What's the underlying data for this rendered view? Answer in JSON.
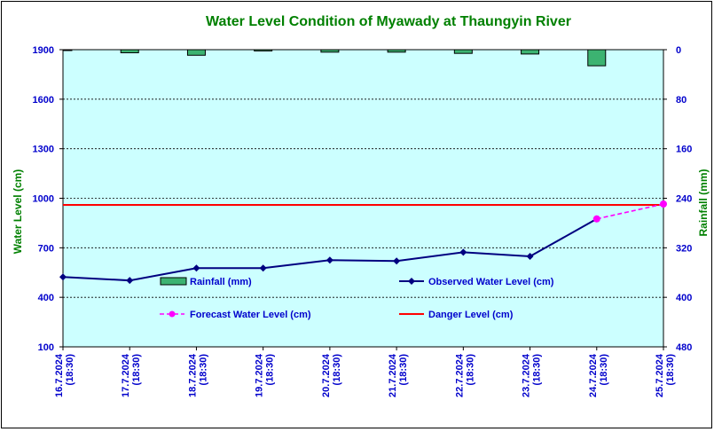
{
  "chart_data": {
    "type": "line",
    "title": "Water Level Condition of  Myawady at Thaungyin River",
    "ylabel": "Water Level (cm)",
    "y2label": "Rainfall (mm)",
    "ylim": [
      100,
      1900
    ],
    "yticks": [
      100,
      400,
      700,
      1000,
      1300,
      1600,
      1900
    ],
    "y2lim": [
      0,
      480
    ],
    "y2ticks": [
      0,
      80,
      160,
      240,
      320,
      400,
      480
    ],
    "y2_inverted": true,
    "grid": true,
    "categories": [
      {
        "date": "16.7.2024",
        "time": "(18:30)"
      },
      {
        "date": "17.7.2024",
        "time": "(18:30)"
      },
      {
        "date": "18.7.2024",
        "time": "(18:30)"
      },
      {
        "date": "19.7.2024",
        "time": "(18:30)"
      },
      {
        "date": "20.7.2024",
        "time": "(18:30)"
      },
      {
        "date": "21.7.2024",
        "time": "(18:30)"
      },
      {
        "date": "22.7.2024",
        "time": "(18:30)"
      },
      {
        "date": "23.7.2024",
        "time": "(18:30)"
      },
      {
        "date": "24.7.2024",
        "time": "(18:30)"
      },
      {
        "date": "25.7.2024",
        "time": "(18:30)"
      }
    ],
    "series": [
      {
        "name": "Rainfall (mm)",
        "type": "bar",
        "axis": "y2",
        "color": "#3cb371",
        "values": [
          0,
          5,
          9,
          2,
          4,
          4,
          6,
          7,
          26,
          null
        ]
      },
      {
        "name": "Observed Water Level (cm)",
        "type": "line",
        "axis": "y",
        "color": "#000080",
        "values": [
          523,
          502,
          577,
          577,
          625,
          620,
          673,
          648,
          875,
          null
        ]
      },
      {
        "name": "Forecast Water Level (cm)",
        "type": "line",
        "axis": "y",
        "color": "#ff00ff",
        "dashed": true,
        "values": [
          null,
          null,
          null,
          null,
          null,
          null,
          null,
          null,
          875,
          965
        ]
      },
      {
        "name": "Danger Level (cm)",
        "type": "hline",
        "axis": "y",
        "color": "#ff0000",
        "value": 960
      }
    ],
    "legend_position": "inside-bottom"
  }
}
